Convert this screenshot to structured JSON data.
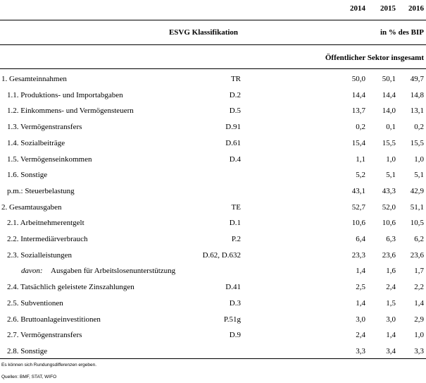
{
  "header": {
    "years": [
      "2014",
      "2015",
      "2016"
    ],
    "classification": "ESVG Klassifikation",
    "unit": "in % des BIP",
    "sector": "Öffentlicher Sektor insgesamt"
  },
  "table": {
    "rows": [
      {
        "label": "1. Gesamteinnahmen",
        "code": "TR",
        "values": [
          "50,0",
          "50,1",
          "49,7"
        ],
        "level": 0
      },
      {
        "label": "1.1. Produktions- und Importabgaben",
        "code": "D.2",
        "values": [
          "14,4",
          "14,4",
          "14,8"
        ],
        "level": 1
      },
      {
        "label": "1.2. Einkommens- und Vermögensteuern",
        "code": "D.5",
        "values": [
          "13,7",
          "14,0",
          "13,1"
        ],
        "level": 1
      },
      {
        "label": "1.3. Vermögenstransfers",
        "code": "D.91",
        "values": [
          "0,2",
          "0,1",
          "0,2"
        ],
        "level": 1
      },
      {
        "label": "1.4. Sozialbeiträge",
        "code": "D.61",
        "values": [
          "15,4",
          "15,5",
          "15,5"
        ],
        "level": 1
      },
      {
        "label": "1.5. Vermögenseinkommen",
        "code": "D.4",
        "values": [
          "1,1",
          "1,0",
          "1,0"
        ],
        "level": 1
      },
      {
        "label": "1.6. Sonstige",
        "code": null,
        "values": [
          "5,2",
          "5,1",
          "5,1"
        ],
        "level": 1
      },
      {
        "label": "p.m.: Steuerbelastung",
        "code": null,
        "values": [
          "43,1",
          "43,3",
          "42,9"
        ],
        "level": 1
      },
      {
        "label": "2. Gesamtausgaben",
        "code": "TE",
        "values": [
          "52,7",
          "52,0",
          "51,1"
        ],
        "level": 0
      },
      {
        "label": "2.1. Arbeitnehmerentgelt",
        "code": "D.1",
        "values": [
          "10,6",
          "10,6",
          "10,5"
        ],
        "level": 1
      },
      {
        "label": "2.2. Intermediärverbrauch",
        "code": "P.2",
        "values": [
          "6,4",
          "6,3",
          "6,2"
        ],
        "level": 1
      },
      {
        "label": "2.3. Sozialleistungen",
        "code": "D.62, D.632",
        "values": [
          "23,3",
          "23,6",
          "23,6"
        ],
        "level": 1
      },
      {
        "prefix": "davon:",
        "label": "Ausgaben für Arbeitslosenunterstützung",
        "code": null,
        "values": [
          "1,4",
          "1,6",
          "1,7"
        ],
        "level": 2
      },
      {
        "label": "2.4. Tatsächlich geleistete Zinszahlungen",
        "code": "D.41",
        "values": [
          "2,5",
          "2,4",
          "2,2"
        ],
        "level": 1
      },
      {
        "label": "2.5. Subventionen",
        "code": "D.3",
        "values": [
          "1,4",
          "1,5",
          "1,4"
        ],
        "level": 1
      },
      {
        "label": "2.6. Bruttoanlageinvestitionen",
        "code": "P.51g",
        "values": [
          "3,0",
          "3,0",
          "2,9"
        ],
        "level": 1
      },
      {
        "label": "2.7. Vermögenstransfers",
        "code": "D.9",
        "values": [
          "2,4",
          "1,4",
          "1,0"
        ],
        "level": 1
      },
      {
        "label": "2.8. Sonstige",
        "code": null,
        "values": [
          "3,3",
          "3,4",
          "3,3"
        ],
        "level": 1
      }
    ]
  },
  "footer": {
    "notes": [
      "Es können sich Rundungsdifferenzen ergeben.",
      "Quellen: BMF, STAT, WIFO"
    ]
  }
}
